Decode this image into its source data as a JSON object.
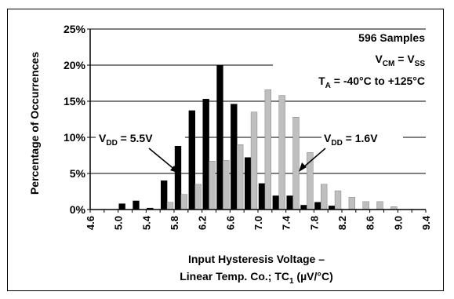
{
  "chart_data": {
    "type": "bar",
    "ylabel": "Percentage of Occurrences",
    "xlabel_line1": "Input Hysteresis Voltage –",
    "xlabel_line2_main": "Linear Temp. Co.; TC",
    "xlabel_line2_sub": "1",
    "xlabel_line2_tail": " (µV/°C)",
    "y_ticks": [
      "0%",
      "5%",
      "10%",
      "15%",
      "20%",
      "25%"
    ],
    "y_tick_values": [
      0,
      5,
      10,
      15,
      20,
      25
    ],
    "ylim": [
      0,
      25
    ],
    "x_ticks": [
      "4.6",
      "5.0",
      "5.4",
      "5.8",
      "6.2",
      "6.6",
      "7.0",
      "7.4",
      "7.8",
      "8.2",
      "8.6",
      "9.0",
      "9.4"
    ],
    "x_tick_values": [
      4.6,
      5.0,
      5.4,
      5.8,
      6.2,
      6.6,
      7.0,
      7.4,
      7.8,
      8.2,
      8.6,
      9.0,
      9.4
    ],
    "xlim": [
      4.6,
      9.4
    ],
    "bin_width": 0.2,
    "grid": "horizontal",
    "series": [
      {
        "name": "VDD = 5.5V",
        "color": "#000000",
        "x": [
          5.0,
          5.2,
          5.4,
          5.6,
          5.8,
          6.0,
          6.2,
          6.4,
          6.6,
          6.8,
          7.0,
          7.2,
          7.4,
          7.6,
          7.8,
          8.0
        ],
        "values": [
          0.8,
          1.2,
          0.2,
          4.0,
          9.7,
          13.7,
          15.3,
          20.0,
          14.6,
          7.2,
          3.6,
          1.9,
          1.9,
          0.6,
          1.0,
          0.5
        ]
      },
      {
        "name": "VDD = 1.6V",
        "color": "#bfbfbf",
        "x": [
          5.6,
          5.8,
          6.0,
          6.2,
          6.4,
          6.6,
          6.8,
          7.0,
          7.2,
          7.4,
          7.6,
          7.8,
          8.0,
          8.2,
          8.4,
          8.6,
          8.8
        ],
        "values": [
          1.0,
          2.1,
          3.5,
          6.7,
          6.8,
          9.0,
          13.5,
          16.6,
          15.8,
          12.8,
          7.9,
          3.5,
          2.6,
          1.7,
          1.1,
          1.1,
          0.4
        ]
      }
    ],
    "annotations": {
      "samples": "596 Samples",
      "vcm_a": "V",
      "vcm_a_sub": "CM",
      "vcm_eq": " = V",
      "vcm_b_sub": "SS",
      "ta_a": "T",
      "ta_sub": "A",
      "ta_rest": " = -40°C to +125°C",
      "vdd_label": "V",
      "vdd_sub": "DD",
      "vdd_hi": " = 5.5V",
      "vdd_lo": " = 1.6V"
    }
  }
}
